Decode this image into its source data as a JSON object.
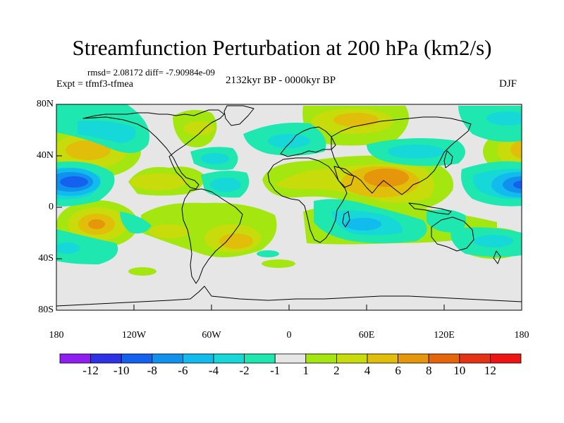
{
  "header": {
    "title": "Streamfunction Perturbation at 200 hPa (km2/s)",
    "stats": "rmsd= 2.08172 diff= -7.90984e-09",
    "experiment": "Expt = tfmf3-tfmea",
    "period": "2132kyr BP - 0000kyr BP",
    "season": "DJF"
  },
  "axes": {
    "lat_labels": [
      "80N",
      "40N",
      "0",
      "40S",
      "80S"
    ],
    "lon_labels": [
      "180",
      "120W",
      "60W",
      "0",
      "60E",
      "120E",
      "180"
    ]
  },
  "colorbar": {
    "labels": [
      "-12",
      "-10",
      "-8",
      "-6",
      "-4",
      "-2",
      "-1",
      "1",
      "2",
      "4",
      "6",
      "8",
      "10",
      "12"
    ],
    "colors": [
      "#8f1ef0",
      "#2d32e6",
      "#1461ef",
      "#0f91ed",
      "#12bbed",
      "#16d8d8",
      "#1ee7b0",
      "#e6e6e6",
      "#a4e610",
      "#c8dc0c",
      "#e1be0a",
      "#e6960a",
      "#e6640a",
      "#e63214",
      "#ef1414"
    ]
  },
  "colors": {
    "background": "#e6e6e6",
    "coastline": "#000000"
  }
}
